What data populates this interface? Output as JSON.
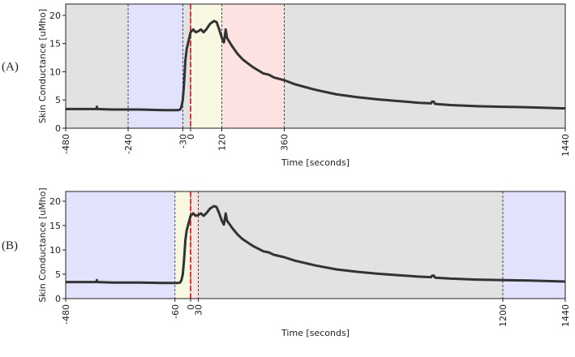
{
  "chart_data": [
    {
      "type": "line",
      "label": "(A)",
      "xlabel": "Time [seconds]",
      "ylabel": "Skin Conductance [uMho]",
      "xlim": [
        -480,
        1440
      ],
      "xticks": [
        -480,
        -240,
        -30,
        0,
        120,
        360,
        1440
      ],
      "ylim": [
        0,
        22
      ],
      "yticks": [
        0,
        5,
        10,
        15,
        20
      ],
      "spans": [
        {
          "x0": -480,
          "x1": -240,
          "color": "#e2e2e2"
        },
        {
          "x0": -240,
          "x1": -30,
          "color": "#e2e2fc"
        },
        {
          "x0": -30,
          "x1": 0,
          "color": "#e2e2e2"
        },
        {
          "x0": 0,
          "x1": 120,
          "color": "#f8f8e2"
        },
        {
          "x0": 120,
          "x1": 360,
          "color": "#fde2e2"
        },
        {
          "x0": 360,
          "x1": 1440,
          "color": "#e2e2e2"
        }
      ],
      "marker_x": 0,
      "marker_color": "#d62728",
      "series": [
        {
          "color": "#333333",
          "x": [
            -480,
            -400,
            -362,
            -360,
            -358,
            -300,
            -200,
            -100,
            -50,
            -40,
            -35,
            -30,
            -25,
            -20,
            -15,
            -10,
            -5,
            0,
            10,
            20,
            30,
            40,
            50,
            60,
            75,
            90,
            100,
            110,
            120,
            128,
            132,
            135,
            140,
            160,
            180,
            200,
            240,
            280,
            300,
            320,
            360,
            400,
            480,
            560,
            640,
            720,
            800,
            880,
            925,
            928,
            935,
            940,
            1000,
            1100,
            1200,
            1300,
            1440
          ],
          "values": [
            3.4,
            3.4,
            3.4,
            3.8,
            3.4,
            3.3,
            3.3,
            3.2,
            3.2,
            3.3,
            3.8,
            5,
            8,
            12,
            14,
            15,
            16,
            17,
            17.5,
            17,
            17.2,
            17.5,
            17,
            17.5,
            18.5,
            19,
            18.8,
            17.5,
            16,
            15.2,
            16.5,
            17.5,
            16,
            14.5,
            13.2,
            12.2,
            10.8,
            9.7,
            9.5,
            9.0,
            8.5,
            7.8,
            6.8,
            6.0,
            5.5,
            5.1,
            4.8,
            4.5,
            4.4,
            4.7,
            4.7,
            4.3,
            4.1,
            3.9,
            3.8,
            3.7,
            3.5
          ]
        }
      ]
    },
    {
      "type": "line",
      "label": "(B)",
      "xlabel": "Time [seconds]",
      "ylabel": "Skin Conductance [uMho]",
      "xlim": [
        -480,
        1440
      ],
      "xticks": [
        -480,
        -60,
        0,
        30,
        1200,
        1440
      ],
      "ylim": [
        0,
        22
      ],
      "yticks": [
        0,
        5,
        10,
        15,
        20
      ],
      "spans": [
        {
          "x0": -480,
          "x1": -60,
          "color": "#e2e2fc"
        },
        {
          "x0": -60,
          "x1": 0,
          "color": "#f8f8e2"
        },
        {
          "x0": 0,
          "x1": 30,
          "color": "#fde2e2"
        },
        {
          "x0": 30,
          "x1": 1200,
          "color": "#e2e2e2"
        },
        {
          "x0": 1200,
          "x1": 1440,
          "color": "#e2e2fc"
        }
      ],
      "marker_x": 0,
      "marker_color": "#d62728",
      "series": [
        {
          "color": "#333333",
          "x": [
            -480,
            -400,
            -362,
            -360,
            -358,
            -300,
            -200,
            -100,
            -50,
            -40,
            -35,
            -30,
            -25,
            -20,
            -15,
            -10,
            -5,
            0,
            10,
            20,
            30,
            40,
            50,
            60,
            75,
            90,
            100,
            110,
            120,
            128,
            132,
            135,
            140,
            160,
            180,
            200,
            240,
            280,
            300,
            320,
            360,
            400,
            480,
            560,
            640,
            720,
            800,
            880,
            925,
            928,
            935,
            940,
            1000,
            1100,
            1200,
            1300,
            1440
          ],
          "values": [
            3.4,
            3.4,
            3.4,
            3.8,
            3.4,
            3.3,
            3.3,
            3.2,
            3.2,
            3.3,
            3.8,
            5,
            8,
            12,
            14,
            15,
            16,
            17,
            17.5,
            17,
            17.2,
            17.5,
            17,
            17.5,
            18.5,
            19,
            18.8,
            17.5,
            16,
            15.2,
            16.5,
            17.5,
            16,
            14.5,
            13.2,
            12.2,
            10.8,
            9.7,
            9.5,
            9.0,
            8.5,
            7.8,
            6.8,
            6.0,
            5.5,
            5.1,
            4.8,
            4.5,
            4.4,
            4.7,
            4.7,
            4.3,
            4.1,
            3.9,
            3.8,
            3.7,
            3.5
          ]
        }
      ]
    }
  ]
}
